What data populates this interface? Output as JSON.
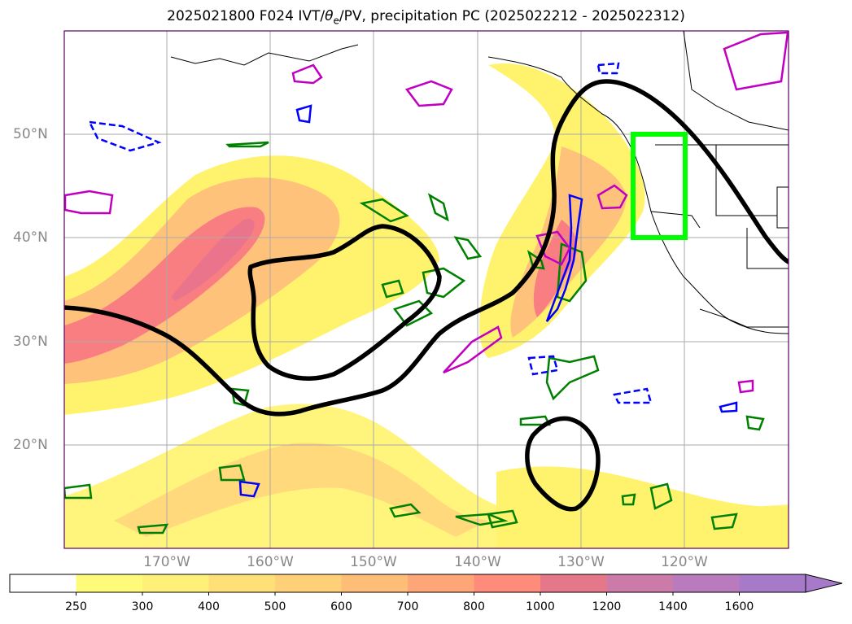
{
  "title_main": "2025021800 F024 IVT/",
  "title_theta": "θ",
  "title_sub": "e",
  "title_rest": "/PV, precipitation PC (2025022212 - 2025022312)",
  "lat_labels": [
    "50°N",
    "40°N",
    "30°N",
    "20°N"
  ],
  "lon_labels": [
    "170°W",
    "160°W",
    "150°W",
    "140°W",
    "130°W",
    "120°W"
  ],
  "colorbar": {
    "levels": [
      "250",
      "300",
      "400",
      "500",
      "600",
      "700",
      "800",
      "1000",
      "1200",
      "1400",
      "1600"
    ],
    "colors": [
      "#ffffff",
      "#fffb7a",
      "#fff07a",
      "#ffe077",
      "#ffd078",
      "#ffbe78",
      "#ffa678",
      "#ff8c7a",
      "#e4788a",
      "#cc7aa8",
      "#b97abe",
      "#a77ac9"
    ],
    "extend": "max"
  },
  "colors": {
    "ivt_low": "#fff36e",
    "ivt_mid": "#ffc27a",
    "ivt_high": "#f97e82",
    "ivt_core": "#e9748c",
    "pv_contour": "#000000",
    "theta_pos": "#008000",
    "theta_neg": "#0000ff",
    "precip_pc": "#c000c0",
    "box": "#00ff00",
    "grid": "#aaaaaa"
  }
}
